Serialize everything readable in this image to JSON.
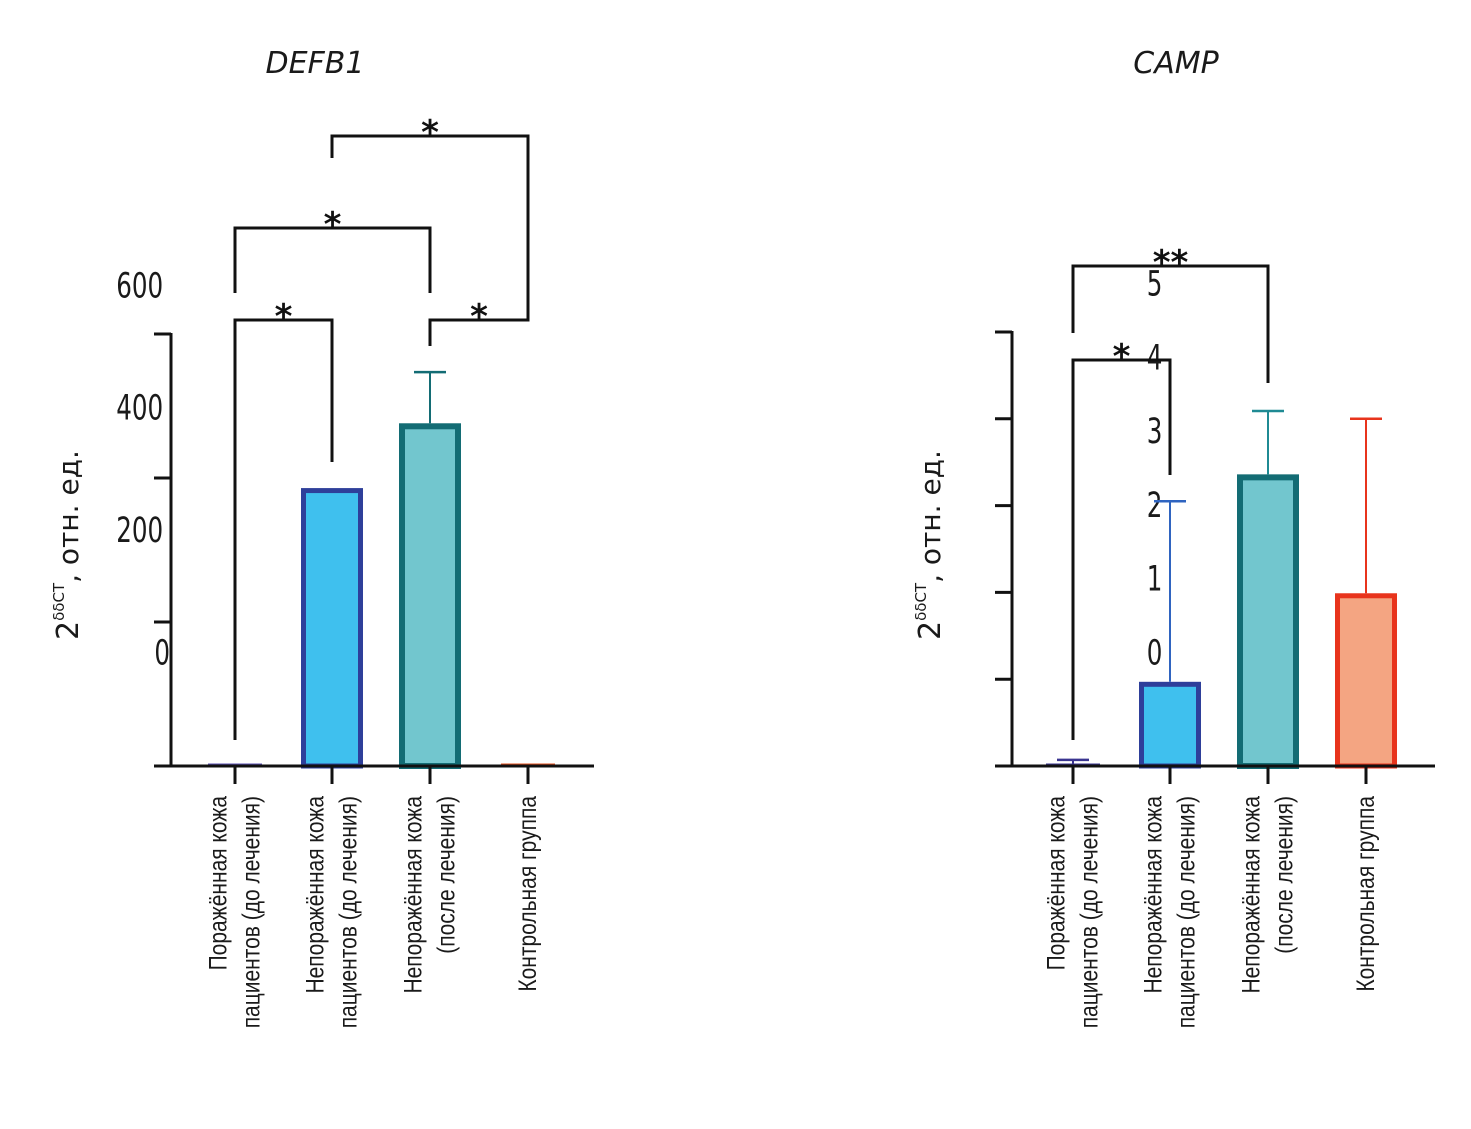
{
  "chart_data": [
    {
      "type": "bar",
      "title": "DEFB1",
      "ylabel": "2^δδCT, отн. ед.",
      "ylabel_base": "2",
      "ylabel_sup": "δδCT",
      "ylabel_rest": ", отн. ед.",
      "xlabel": "",
      "ylim": [
        0,
        600
      ],
      "yticks": [
        0,
        200,
        400,
        600
      ],
      "ytick_labels": [
        "0",
        "200",
        "400",
        "600"
      ],
      "grid": false,
      "categories": [
        [
          "Поражённая кожа",
          "пациентов (до лечения)"
        ],
        [
          "Непоражённая кожа",
          "пациентов (до лечения)"
        ],
        [
          "Непоражённая кожа",
          "(после лечения)"
        ],
        [
          "Контрольная группа"
        ]
      ],
      "values": [
        0.5,
        386,
        476,
        0.5
      ],
      "error_upper": [
        null,
        null,
        547,
        null
      ],
      "bar_fill": [
        "#7b6fc4",
        "#3fc0ee",
        "#72c6ce",
        "#f0a57f"
      ],
      "bar_stroke": [
        "#5a4fb0",
        "#2e3f9a",
        "#136c74",
        "#e2501e"
      ],
      "significance": [
        {
          "groups": [
            0,
            1
          ],
          "label": "*"
        },
        {
          "groups": [
            2,
            3
          ],
          "label": "*"
        },
        {
          "groups": [
            0,
            2
          ],
          "label": "*"
        },
        {
          "groups": [
            1,
            3
          ],
          "label": "*"
        }
      ]
    },
    {
      "type": "bar",
      "title": "CAMP",
      "ylabel": "2^δδCT, отн. ед.",
      "ylabel_base": "2",
      "ylabel_sup": "δδCT",
      "ylabel_rest": ", отн. ед.",
      "xlabel": "",
      "ylim": [
        0,
        5
      ],
      "yticks": [
        0,
        1,
        2,
        3,
        4,
        5
      ],
      "ytick_labels": [
        "0",
        "1",
        "2",
        "3",
        "4",
        "5"
      ],
      "grid": false,
      "categories": [
        [
          "Поражённая кожа",
          "пациентов (до лечения)"
        ],
        [
          "Непоражённая кожа",
          "пациентов (до лечения)"
        ],
        [
          "Непоражённая кожа",
          "(после лечения)"
        ],
        [
          "Контрольная группа"
        ]
      ],
      "values": [
        0.02,
        0.97,
        3.36,
        1.99
      ],
      "error_upper": [
        0.07,
        3.05,
        4.09,
        4.0
      ],
      "bar_fill": [
        "#7b6fc4",
        "#3fc0ee",
        "#72c6ce",
        "#f4a582"
      ],
      "bar_stroke": [
        "#3a3590",
        "#2e3f9a",
        "#136c74",
        "#e8341c"
      ],
      "error_color": [
        "#3a3590",
        "#2f64c0",
        "#1f8a93",
        "#e8341c"
      ],
      "significance": [
        {
          "groups": [
            0,
            1
          ],
          "label": "*"
        },
        {
          "groups": [
            0,
            2
          ],
          "label": "**"
        }
      ]
    }
  ]
}
